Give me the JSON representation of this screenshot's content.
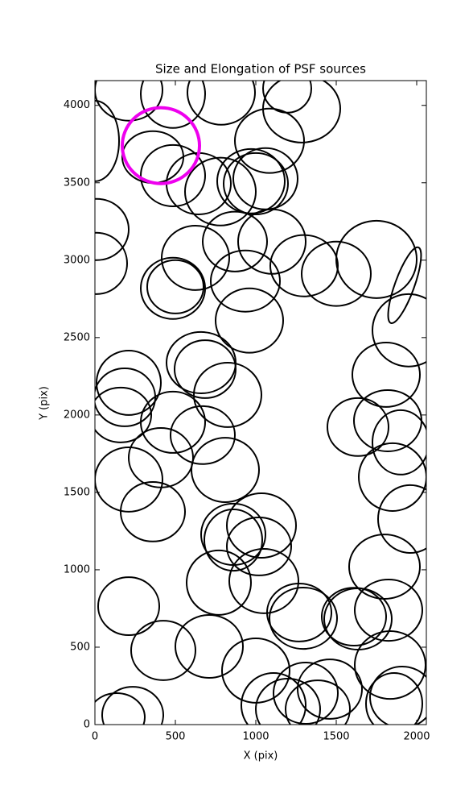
{
  "chart_data": {
    "type": "ellipse",
    "title": "Size and Elongation of PSF sources",
    "x_label": "X (pix)",
    "y_label": "Y (pix)",
    "xlim": [
      0,
      2060
    ],
    "ylim": [
      0,
      4160
    ],
    "xticks": [
      0,
      500,
      1000,
      1500,
      2000
    ],
    "yticks": [
      0,
      500,
      1000,
      1500,
      2000,
      2500,
      3000,
      3500,
      4000
    ],
    "series": [
      {
        "color": "#000000",
        "x": [
          210,
          485,
          785,
          1195,
          1285,
          1085,
          0,
          360,
          485,
          780,
          645,
          970,
          1000,
          1060,
          10,
          10,
          625,
          870,
          1100,
          1300,
          1500,
          1750,
          1925,
          1950,
          485,
          500,
          935,
          960,
          660,
          685,
          825,
          210,
          185,
          160,
          485,
          670,
          410,
          810,
          210,
          360,
          860,
          860,
          1035,
          1020,
          1050,
          770,
          210,
          425,
          710,
          1000,
          1270,
          1295,
          1610,
          1635,
          1800,
          1825,
          1835,
          1860,
          1910,
          1635,
          1820,
          1900,
          1850,
          1960,
          1810,
          1110,
          1310,
          1200,
          1385,
          1460,
          135,
          235
        ],
        "y": [
          4099,
          4073,
          4083,
          4109,
          3979,
          3771,
          3770,
          3666,
          3546,
          3443,
          3494,
          3510,
          3494,
          3526,
          3198,
          2979,
          3015,
          3120,
          3120,
          2964,
          2912,
          3005,
          2838,
          2547,
          2818,
          2828,
          2865,
          2610,
          2338,
          2296,
          2130,
          2208,
          2114,
          2000,
          1953,
          1870,
          1724,
          1645,
          1583,
          1375,
          1229,
          1192,
          1286,
          1151,
          927,
          917,
          765,
          479,
          505,
          349,
          724,
          687,
          697,
          682,
          1020,
          739,
          385,
          135,
          177,
          1922,
          1963,
          1823,
          1599,
          1328,
          2260,
          125,
          203,
          99,
          99,
          229,
          47,
          62
        ],
        "rx": [
          210,
          200,
          210,
          150,
          240,
          215,
          150,
          190,
          200,
          220,
          200,
          210,
          200,
          200,
          200,
          190,
          210,
          200,
          210,
          210,
          215,
          250,
          60,
          225,
          200,
          175,
          215,
          210,
          215,
          190,
          210,
          200,
          190,
          190,
          200,
          200,
          200,
          210,
          210,
          200,
          200,
          180,
          215,
          200,
          215,
          200,
          190,
          200,
          210,
          210,
          200,
          210,
          200,
          210,
          220,
          210,
          220,
          175,
          200,
          190,
          210,
          175,
          210,
          200,
          210,
          200,
          200,
          200,
          200,
          200,
          175,
          190
        ],
        "ry": [
          198,
          219,
          208,
          156,
          219,
          208,
          260,
          167,
          198,
          219,
          198,
          208,
          198,
          198,
          198,
          198,
          208,
          193,
          208,
          198,
          208,
          250,
          260,
          234,
          198,
          172,
          198,
          208,
          198,
          187,
          208,
          208,
          187,
          177,
          198,
          187,
          192,
          208,
          208,
          192,
          198,
          198,
          208,
          187,
          208,
          208,
          187,
          192,
          203,
          208,
          187,
          198,
          187,
          198,
          208,
          198,
          219,
          198,
          198,
          187,
          198,
          208,
          219,
          219,
          208,
          208,
          198,
          198,
          187,
          192,
          156,
          182
        ],
        "angle": [
          0,
          0,
          0,
          0,
          0,
          0,
          0,
          0,
          0,
          0,
          0,
          0,
          0,
          0,
          0,
          0,
          0,
          0,
          0,
          0,
          0,
          0,
          20,
          0,
          0,
          0,
          0,
          0,
          0,
          0,
          0,
          0,
          0,
          0,
          0,
          0,
          0,
          0,
          0,
          0,
          0,
          0,
          0,
          0,
          0,
          0,
          0,
          0,
          0,
          0,
          0,
          0,
          0,
          0,
          0,
          0,
          0,
          0,
          0,
          0,
          0,
          0,
          0,
          0,
          0,
          0,
          0,
          0,
          0,
          0,
          0,
          0
        ]
      },
      {
        "color": "#ee00ee",
        "x": [
          410
        ],
        "y": [
          3740
        ],
        "rx": [
          240
        ],
        "ry": [
          245
        ],
        "angle": [
          0
        ]
      }
    ]
  }
}
